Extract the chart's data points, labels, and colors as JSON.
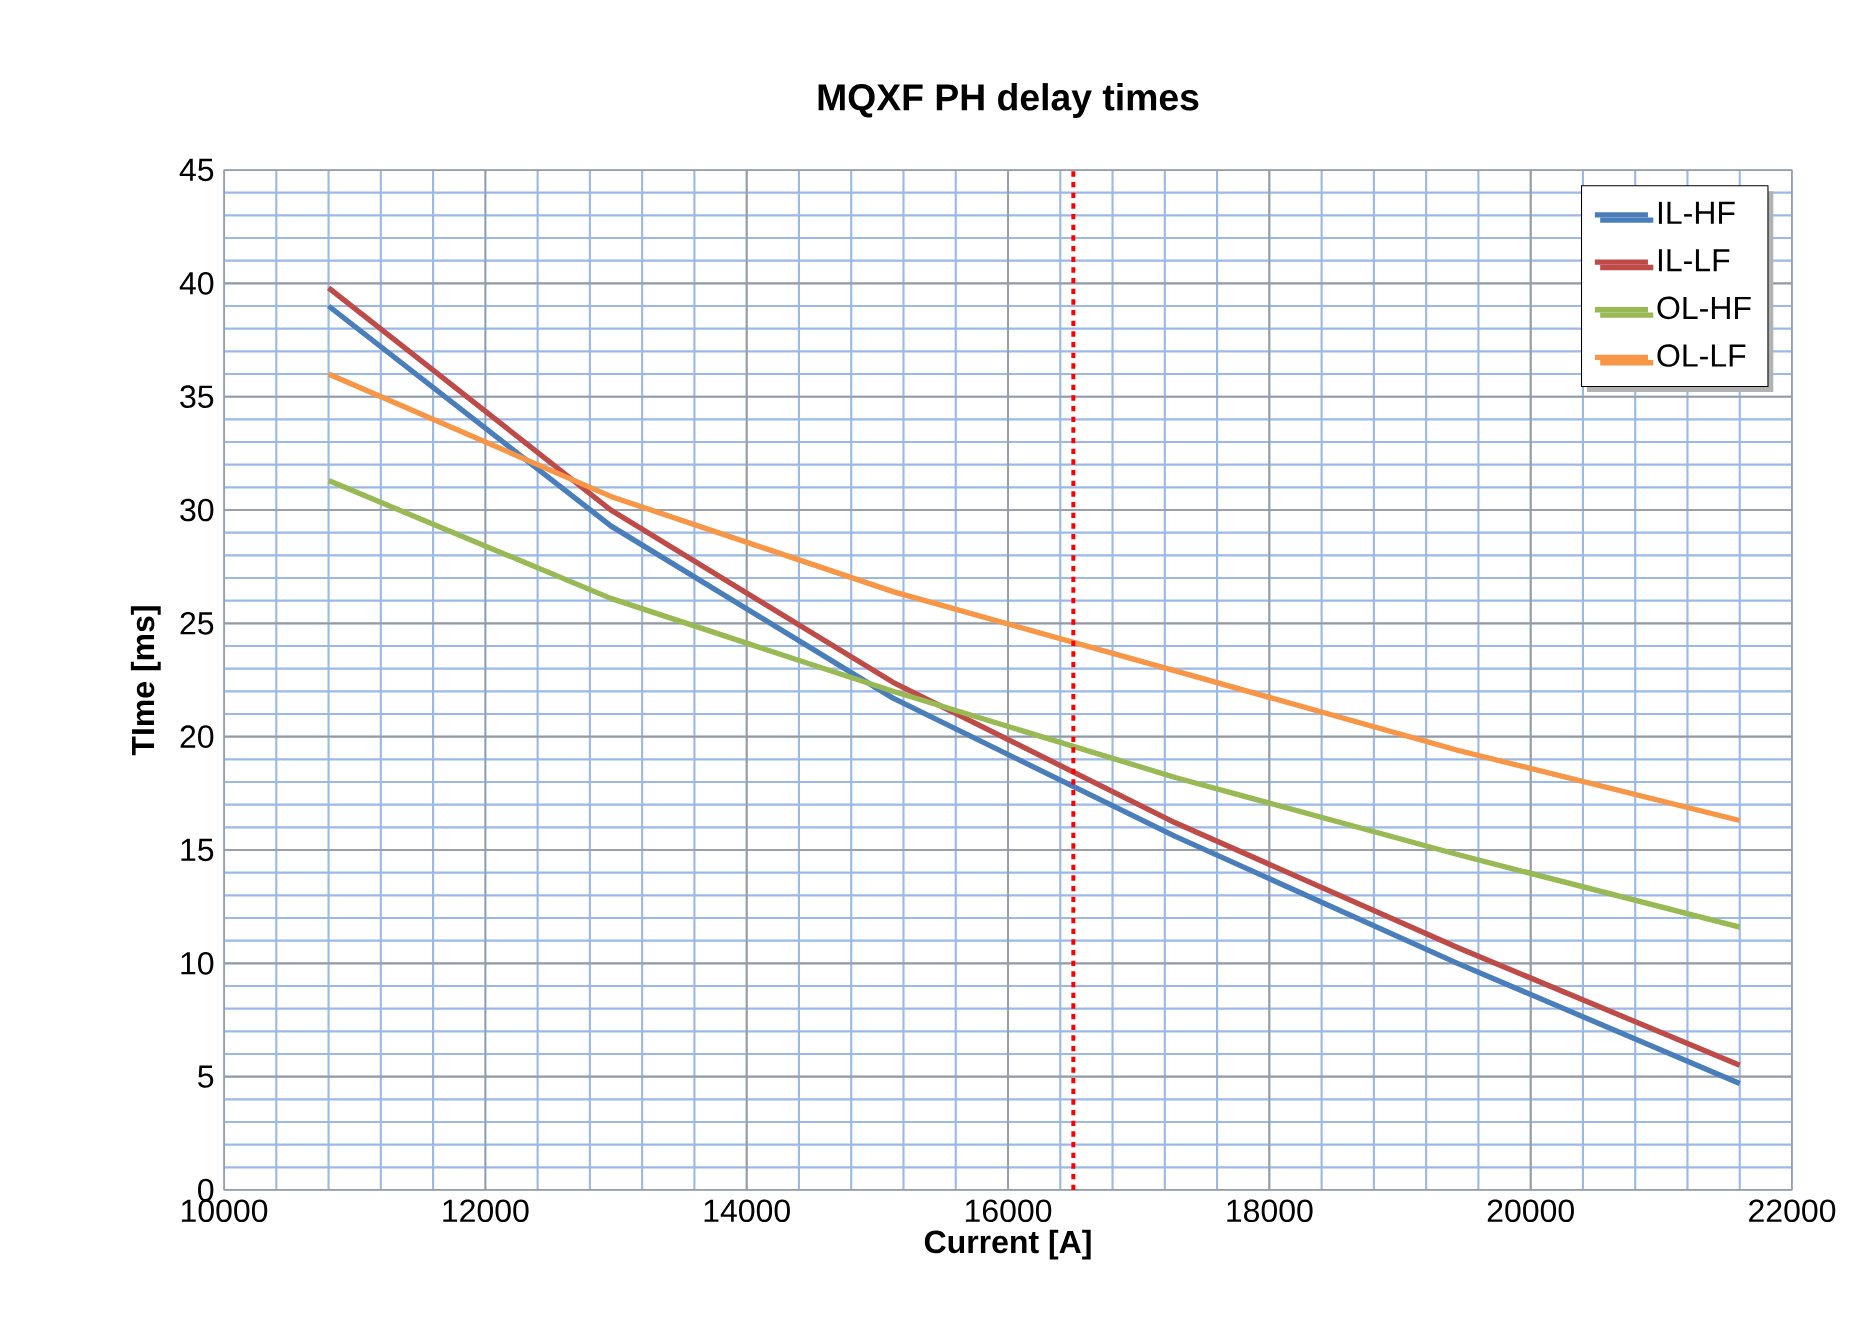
{
  "chart_data": {
    "type": "line",
    "title": "MQXF PH delay times",
    "xlabel": "Current [A]",
    "ylabel": "TIme [ms]",
    "x": [
      10800,
      12960,
      15120,
      17280,
      19440,
      21600
    ],
    "series": [
      {
        "name": "IL-HF",
        "color": "#4a7ebb",
        "values": [
          39.0,
          29.3,
          21.7,
          15.6,
          10.0,
          4.7
        ]
      },
      {
        "name": "IL-LF",
        "color": "#be4b48",
        "values": [
          39.8,
          30.0,
          22.4,
          16.2,
          10.7,
          5.5
        ]
      },
      {
        "name": "OL-HF",
        "color": "#98b954",
        "values": [
          31.3,
          26.1,
          22.0,
          18.2,
          14.8,
          11.6
        ]
      },
      {
        "name": "OL-LF",
        "color": "#f79646",
        "values": [
          36.0,
          30.6,
          26.4,
          22.9,
          19.4,
          16.3
        ]
      }
    ],
    "ref_lines": [
      {
        "axis": "x",
        "value": 16500,
        "color": "#ff0000",
        "line_style": "dotted"
      }
    ],
    "xlim": [
      10000,
      22000
    ],
    "xticks": [
      10000,
      {
        "value": 10400,
        "label": null
      },
      {
        "value": 10800,
        "label": null
      },
      {
        "value": 11200,
        "label": null
      },
      {
        "value": 11600,
        "label": null
      },
      12000,
      {
        "value": 12400,
        "label": null
      },
      {
        "value": 12800,
        "label": null
      },
      {
        "value": 13200,
        "label": null
      },
      {
        "value": 13600,
        "label": null
      },
      14000,
      {
        "value": 14400,
        "label": null
      },
      {
        "value": 14800,
        "label": null
      },
      {
        "value": 15200,
        "label": null
      },
      {
        "value": 15600,
        "label": null
      },
      16000,
      {
        "value": 16400,
        "label": null
      },
      {
        "value": 16800,
        "label": null
      },
      {
        "value": 17200,
        "label": null
      },
      {
        "value": 17600,
        "label": null
      },
      18000,
      {
        "value": 18400,
        "label": null
      },
      {
        "value": 18800,
        "label": null
      },
      {
        "value": 19200,
        "label": null
      },
      {
        "value": 19600,
        "label": null
      },
      20000,
      {
        "value": 20400,
        "label": null
      },
      {
        "value": 20800,
        "label": null
      },
      {
        "value": 21200,
        "label": null
      },
      {
        "value": 21600,
        "label": null
      },
      22000
    ],
    "ylim": [
      0,
      45
    ],
    "yticks": [
      0,
      {
        "value": 1,
        "label": null
      },
      {
        "value": 2,
        "label": null
      },
      {
        "value": 3,
        "label": null
      },
      {
        "value": 4,
        "label": null
      },
      5,
      {
        "value": 6,
        "label": null
      },
      {
        "value": 7,
        "label": null
      },
      {
        "value": 8,
        "label": null
      },
      {
        "value": 9,
        "label": null
      },
      10,
      {
        "value": 11,
        "label": null
      },
      {
        "value": 12,
        "label": null
      },
      {
        "value": 13,
        "label": null
      },
      {
        "value": 14,
        "label": null
      },
      15,
      {
        "value": 16,
        "label": null
      },
      {
        "value": 17,
        "label": null
      },
      {
        "value": 18,
        "label": null
      },
      {
        "value": 19,
        "label": null
      },
      20,
      {
        "value": 21,
        "label": null
      },
      {
        "value": 22,
        "label": null
      },
      {
        "value": 23,
        "label": null
      },
      {
        "value": 24,
        "label": null
      },
      25,
      {
        "value": 26,
        "label": null
      },
      {
        "value": 27,
        "label": null
      },
      {
        "value": 28,
        "label": null
      },
      {
        "value": 29,
        "label": null
      },
      30,
      {
        "value": 31,
        "label": null
      },
      {
        "value": 32,
        "label": null
      },
      {
        "value": 33,
        "label": null
      },
      {
        "value": 34,
        "label": null
      },
      35,
      {
        "value": 36,
        "label": null
      },
      {
        "value": 37,
        "label": null
      },
      {
        "value": 38,
        "label": null
      },
      {
        "value": 39,
        "label": null
      },
      40,
      {
        "value": 41,
        "label": null
      },
      {
        "value": 42,
        "label": null
      },
      {
        "value": 43,
        "label": null
      },
      {
        "value": 44,
        "label": null
      },
      45
    ],
    "grid": true,
    "legend": "top right",
    "marker": "none",
    "line_style": "solid"
  }
}
